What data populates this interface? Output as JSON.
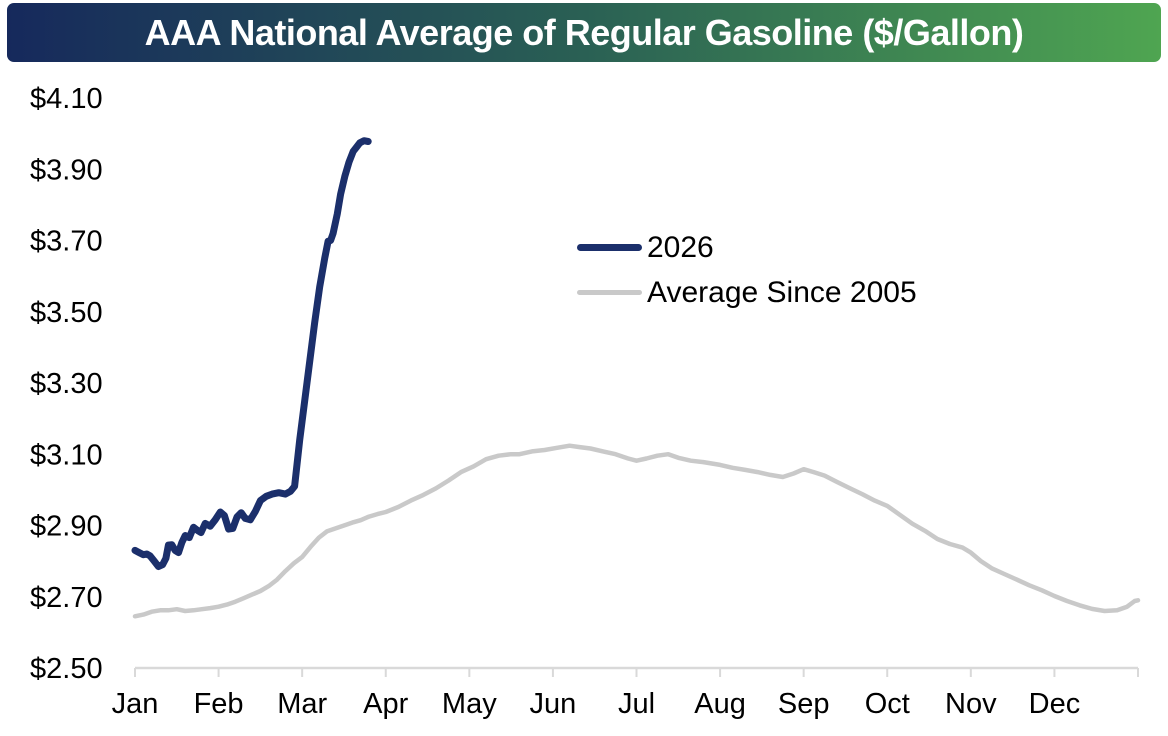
{
  "title": {
    "text": "AAA National Average of Regular Gasoline ($/Gallon)"
  },
  "colors": {
    "title_gradient_left": "#16295C",
    "title_gradient_mid": "#2A6054",
    "title_gradient_right": "#4FA551",
    "title_text": "#FFFFFF",
    "series_2026": "#1B2F6B",
    "series_average": "#C9C9C9",
    "axis": "#D9D9D9",
    "label_text": "#000000"
  },
  "chart_data": {
    "type": "line",
    "title": "AAA National Average of Regular Gasoline ($/Gallon)",
    "xlabel": "",
    "ylabel": "",
    "grid": false,
    "legend_position": "upper-center-inside",
    "xlim": [
      0,
      12
    ],
    "ylim": [
      2.5,
      4.1
    ],
    "x_unit": "month index (0 = Jan 1, 12 = Dec 31)",
    "x_tick_labels": [
      "Jan",
      "Feb",
      "Mar",
      "Apr",
      "May",
      "Jun",
      "Jul",
      "Aug",
      "Sep",
      "Oct",
      "Nov",
      "Dec"
    ],
    "y_ticks": [
      {
        "value": 2.5,
        "label": "$2.50"
      },
      {
        "value": 2.7,
        "label": "$2.70"
      },
      {
        "value": 2.9,
        "label": "$2.90"
      },
      {
        "value": 3.1,
        "label": "$3.10"
      },
      {
        "value": 3.3,
        "label": "$3.30"
      },
      {
        "value": 3.5,
        "label": "$3.50"
      },
      {
        "value": 3.7,
        "label": "$3.70"
      },
      {
        "value": 3.9,
        "label": "$3.90"
      },
      {
        "value": 4.1,
        "label": "$4.10"
      }
    ],
    "series": [
      {
        "name": "2026",
        "color": "#1B2F6B",
        "width": 7,
        "points": [
          [
            0.0,
            2.83
          ],
          [
            0.05,
            2.824
          ],
          [
            0.1,
            2.818
          ],
          [
            0.14,
            2.82
          ],
          [
            0.18,
            2.815
          ],
          [
            0.23,
            2.8
          ],
          [
            0.28,
            2.785
          ],
          [
            0.33,
            2.79
          ],
          [
            0.37,
            2.808
          ],
          [
            0.4,
            2.845
          ],
          [
            0.44,
            2.846
          ],
          [
            0.48,
            2.83
          ],
          [
            0.52,
            2.824
          ],
          [
            0.56,
            2.852
          ],
          [
            0.6,
            2.872
          ],
          [
            0.65,
            2.866
          ],
          [
            0.7,
            2.895
          ],
          [
            0.75,
            2.886
          ],
          [
            0.79,
            2.88
          ],
          [
            0.84,
            2.906
          ],
          [
            0.9,
            2.898
          ],
          [
            0.96,
            2.916
          ],
          [
            1.02,
            2.938
          ],
          [
            1.07,
            2.928
          ],
          [
            1.12,
            2.89
          ],
          [
            1.17,
            2.892
          ],
          [
            1.22,
            2.924
          ],
          [
            1.27,
            2.936
          ],
          [
            1.32,
            2.92
          ],
          [
            1.38,
            2.916
          ],
          [
            1.44,
            2.94
          ],
          [
            1.5,
            2.97
          ],
          [
            1.57,
            2.982
          ],
          [
            1.64,
            2.988
          ],
          [
            1.72,
            2.992
          ],
          [
            1.8,
            2.988
          ],
          [
            1.86,
            2.996
          ],
          [
            1.91,
            3.01
          ],
          [
            1.97,
            3.14
          ],
          [
            2.03,
            3.25
          ],
          [
            2.09,
            3.36
          ],
          [
            2.15,
            3.47
          ],
          [
            2.21,
            3.57
          ],
          [
            2.27,
            3.65
          ],
          [
            2.31,
            3.698
          ],
          [
            2.34,
            3.7
          ],
          [
            2.37,
            3.72
          ],
          [
            2.42,
            3.775
          ],
          [
            2.46,
            3.83
          ],
          [
            2.51,
            3.88
          ],
          [
            2.56,
            3.92
          ],
          [
            2.61,
            3.95
          ],
          [
            2.65,
            3.962
          ],
          [
            2.69,
            3.974
          ],
          [
            2.74,
            3.98
          ],
          [
            2.79,
            3.978
          ]
        ]
      },
      {
        "name": "Average Since 2005",
        "color": "#C9C9C9",
        "width": 4.5,
        "points": [
          [
            0.0,
            2.645
          ],
          [
            0.1,
            2.65
          ],
          [
            0.2,
            2.658
          ],
          [
            0.3,
            2.662
          ],
          [
            0.4,
            2.662
          ],
          [
            0.5,
            2.665
          ],
          [
            0.6,
            2.66
          ],
          [
            0.7,
            2.662
          ],
          [
            0.8,
            2.665
          ],
          [
            0.9,
            2.668
          ],
          [
            1.0,
            2.672
          ],
          [
            1.1,
            2.678
          ],
          [
            1.2,
            2.686
          ],
          [
            1.3,
            2.696
          ],
          [
            1.4,
            2.706
          ],
          [
            1.5,
            2.716
          ],
          [
            1.6,
            2.73
          ],
          [
            1.7,
            2.748
          ],
          [
            1.8,
            2.772
          ],
          [
            1.9,
            2.794
          ],
          [
            2.0,
            2.812
          ],
          [
            2.1,
            2.84
          ],
          [
            2.2,
            2.866
          ],
          [
            2.3,
            2.884
          ],
          [
            2.4,
            2.892
          ],
          [
            2.5,
            2.9
          ],
          [
            2.6,
            2.908
          ],
          [
            2.7,
            2.915
          ],
          [
            2.8,
            2.925
          ],
          [
            2.9,
            2.932
          ],
          [
            3.0,
            2.938
          ],
          [
            3.15,
            2.952
          ],
          [
            3.3,
            2.97
          ],
          [
            3.45,
            2.986
          ],
          [
            3.6,
            3.004
          ],
          [
            3.75,
            3.026
          ],
          [
            3.9,
            3.05
          ],
          [
            4.05,
            3.066
          ],
          [
            4.2,
            3.086
          ],
          [
            4.35,
            3.096
          ],
          [
            4.5,
            3.1
          ],
          [
            4.6,
            3.1
          ],
          [
            4.75,
            3.108
          ],
          [
            4.9,
            3.112
          ],
          [
            5.05,
            3.118
          ],
          [
            5.2,
            3.124
          ],
          [
            5.32,
            3.12
          ],
          [
            5.45,
            3.116
          ],
          [
            5.6,
            3.108
          ],
          [
            5.75,
            3.1
          ],
          [
            5.9,
            3.088
          ],
          [
            6.0,
            3.082
          ],
          [
            6.12,
            3.088
          ],
          [
            6.25,
            3.096
          ],
          [
            6.38,
            3.1
          ],
          [
            6.5,
            3.09
          ],
          [
            6.65,
            3.082
          ],
          [
            6.8,
            3.078
          ],
          [
            7.0,
            3.07
          ],
          [
            7.15,
            3.062
          ],
          [
            7.3,
            3.056
          ],
          [
            7.45,
            3.05
          ],
          [
            7.6,
            3.042
          ],
          [
            7.75,
            3.036
          ],
          [
            7.88,
            3.046
          ],
          [
            8.0,
            3.058
          ],
          [
            8.12,
            3.05
          ],
          [
            8.25,
            3.04
          ],
          [
            8.4,
            3.022
          ],
          [
            8.55,
            3.005
          ],
          [
            8.7,
            2.988
          ],
          [
            8.85,
            2.97
          ],
          [
            9.0,
            2.955
          ],
          [
            9.15,
            2.93
          ],
          [
            9.3,
            2.905
          ],
          [
            9.45,
            2.885
          ],
          [
            9.6,
            2.862
          ],
          [
            9.75,
            2.848
          ],
          [
            9.9,
            2.838
          ],
          [
            10.0,
            2.824
          ],
          [
            10.12,
            2.8
          ],
          [
            10.25,
            2.78
          ],
          [
            10.4,
            2.764
          ],
          [
            10.55,
            2.748
          ],
          [
            10.7,
            2.732
          ],
          [
            10.85,
            2.718
          ],
          [
            11.0,
            2.702
          ],
          [
            11.15,
            2.688
          ],
          [
            11.3,
            2.676
          ],
          [
            11.45,
            2.666
          ],
          [
            11.6,
            2.66
          ],
          [
            11.75,
            2.662
          ],
          [
            11.87,
            2.672
          ],
          [
            11.96,
            2.688
          ],
          [
            12.0,
            2.69
          ]
        ]
      }
    ]
  }
}
